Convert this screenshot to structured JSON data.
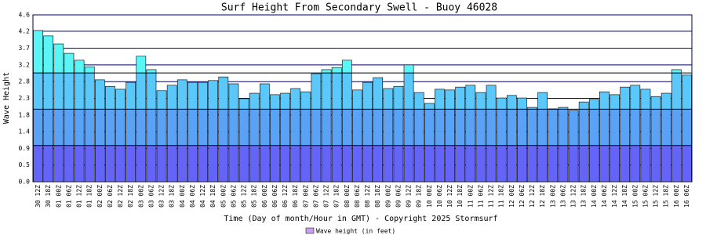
{
  "chart_data": {
    "type": "bar",
    "title": "Surf Height From Secondary Swell - Buoy 46028",
    "y_label": "Wave Height",
    "x_label": "Time (Day of month/Hour in GMT) - Copyright 2025 Stormsurf",
    "legend": "Wave height (in feet)",
    "legend_color": "#c8a0f0",
    "categories": [
      "30 12Z",
      "30 18Z",
      "01 00Z",
      "01 06Z",
      "01 12Z",
      "01 18Z",
      "02 00Z",
      "02 06Z",
      "02 12Z",
      "02 18Z",
      "03 00Z",
      "03 06Z",
      "03 12Z",
      "03 18Z",
      "04 00Z",
      "04 06Z",
      "04 12Z",
      "04 18Z",
      "05 00Z",
      "05 06Z",
      "05 12Z",
      "05 18Z",
      "06 00Z",
      "06 06Z",
      "06 12Z",
      "06 18Z",
      "07 00Z",
      "07 06Z",
      "07 12Z",
      "07 18Z",
      "08 00Z",
      "08 06Z",
      "08 12Z",
      "08 18Z",
      "09 00Z",
      "09 06Z",
      "09 12Z",
      "09 18Z",
      "10 00Z",
      "10 06Z",
      "10 12Z",
      "10 18Z",
      "11 00Z",
      "11 06Z",
      "11 12Z",
      "11 18Z",
      "12 00Z",
      "12 06Z",
      "12 12Z",
      "12 18Z",
      "13 00Z",
      "13 06Z",
      "13 12Z",
      "13 18Z",
      "14 00Z",
      "14 06Z",
      "14 12Z",
      "14 18Z",
      "15 00Z",
      "15 06Z",
      "15 12Z",
      "15 18Z",
      "16 00Z",
      "16 06Z"
    ],
    "values": [
      4.17,
      4.02,
      3.8,
      3.54,
      3.35,
      3.17,
      2.81,
      2.63,
      2.55,
      2.74,
      3.46,
      3.09,
      2.51,
      2.66,
      2.81,
      2.74,
      2.74,
      2.79,
      2.89,
      2.7,
      2.29,
      2.44,
      2.7,
      2.4,
      2.44,
      2.57,
      2.48,
      2.98,
      3.09,
      3.15,
      3.35,
      2.53,
      2.74,
      2.87,
      2.57,
      2.63,
      3.22,
      2.46,
      2.16,
      2.55,
      2.53,
      2.61,
      2.66,
      2.46,
      2.66,
      2.31,
      2.38,
      2.31,
      2.05,
      2.46,
      2.01,
      2.05,
      1.97,
      2.2,
      2.27,
      2.48,
      2.4,
      2.61,
      2.66,
      2.55,
      2.35,
      2.44,
      3.09,
      2.94
    ],
    "band_thresholds": [
      1,
      2,
      3
    ],
    "band_colors": [
      "#6464f8",
      "#5aa2f6",
      "#5ac8fa",
      "#5af6f6"
    ],
    "ylim": [
      0,
      4.6
    ],
    "yticks": [
      {
        "value": 0,
        "label": "0.0"
      },
      {
        "value": 0.46,
        "label": "0.5"
      },
      {
        "value": 0.92,
        "label": "0.9"
      },
      {
        "value": 1.38,
        "label": "1.4"
      },
      {
        "value": 1.84,
        "label": "1.8"
      },
      {
        "value": 2.3,
        "label": "2.3"
      },
      {
        "value": 2.76,
        "label": "2.8"
      },
      {
        "value": 3.22,
        "label": "3.2"
      },
      {
        "value": 3.68,
        "label": "3.7"
      },
      {
        "value": 4.15,
        "label": "4.2"
      },
      {
        "value": 4.6,
        "label": "4.6"
      }
    ],
    "grid": true
  }
}
